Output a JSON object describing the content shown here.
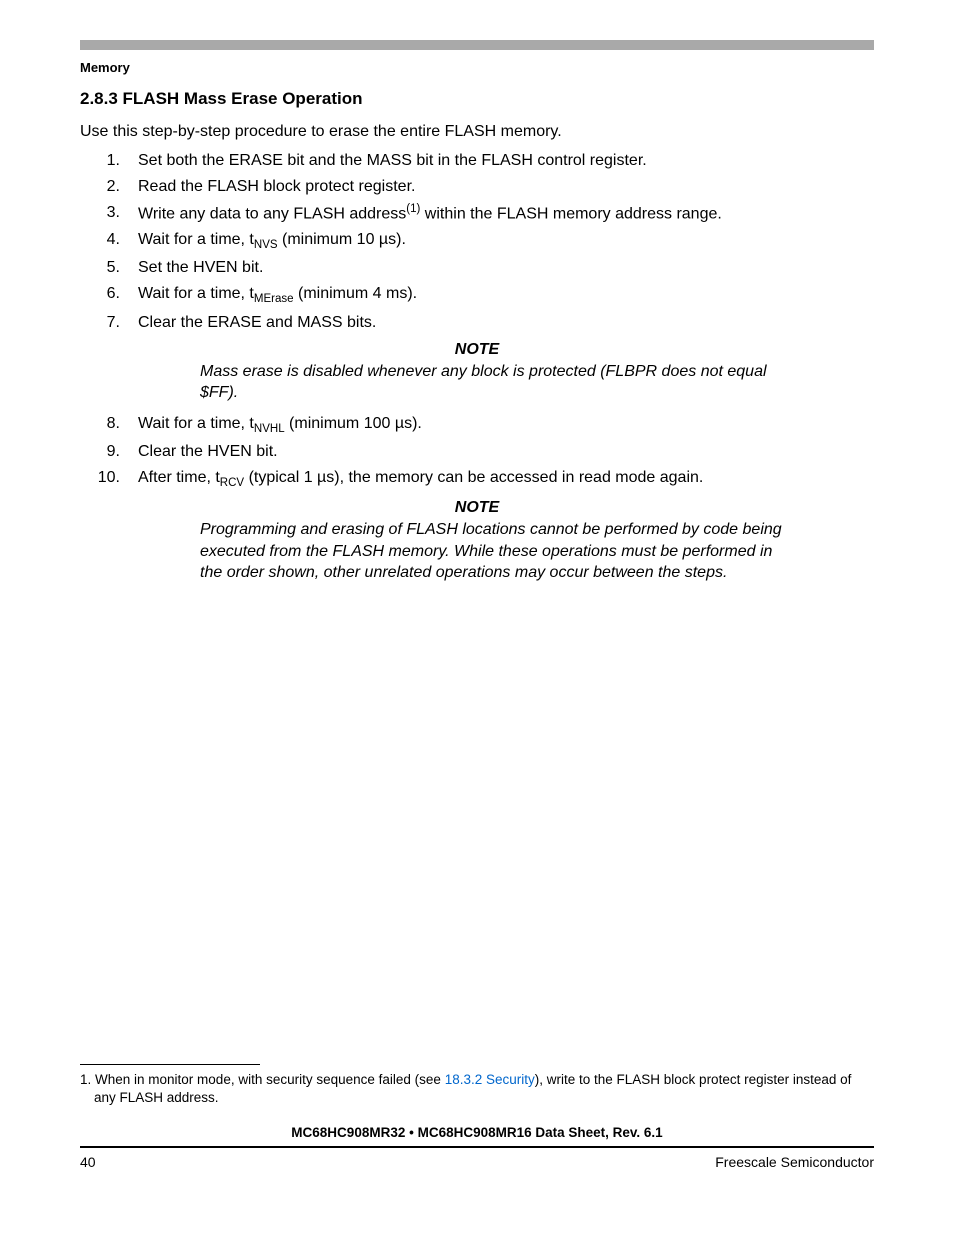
{
  "colors": {
    "top_bar": "#a9a9a9",
    "text": "#000000",
    "link": "#0066cc",
    "background": "#ffffff"
  },
  "typography": {
    "body_fontsize_pt": 12,
    "heading_fontsize_pt": 13,
    "footnote_fontsize_pt": 10,
    "font_family": "Arial/Helvetica"
  },
  "running_head": "Memory",
  "section": {
    "number": "2.8.3",
    "title": "FLASH Mass Erase Operation",
    "full": "2.8.3  FLASH Mass Erase Operation"
  },
  "intro": "Use this step-by-step procedure to erase the entire FLASH memory.",
  "steps_a": [
    {
      "n": "1.",
      "text": "Set both the ERASE bit and the MASS bit in the FLASH control register."
    },
    {
      "n": "2.",
      "text": "Read the FLASH block protect register."
    },
    {
      "n": "3.",
      "pre": "Write any data to any FLASH address",
      "sup": "(1)",
      "post": " within the FLASH memory address range."
    },
    {
      "n": "4.",
      "pre": "Wait for a time, t",
      "sub": "NVS",
      "post": " (minimum 10 µs)."
    },
    {
      "n": "5.",
      "text": "Set the HVEN bit."
    },
    {
      "n": "6.",
      "pre": "Wait for a time, t",
      "sub": "MErase",
      "post": " (minimum 4 ms)."
    },
    {
      "n": "7.",
      "text": "Clear the ERASE and MASS bits."
    }
  ],
  "note1": {
    "head": "NOTE",
    "body": "Mass erase is disabled whenever any block is protected (FLBPR does not equal $FF)."
  },
  "steps_b": [
    {
      "n": "8.",
      "pre": "Wait for a time, t",
      "sub": "NVHL",
      "post": " (minimum 100 µs)."
    },
    {
      "n": "9.",
      "text": "Clear the HVEN bit."
    },
    {
      "n": "10.",
      "pre": "After time, t",
      "sub": "RCV",
      "post": " (typical 1 µs), the memory can be accessed in read mode again."
    }
  ],
  "note2": {
    "head": "NOTE",
    "body": "Programming and erasing of FLASH locations cannot be performed by code being executed from the FLASH memory. While these operations must be performed in the order shown, other unrelated operations may occur between the steps."
  },
  "footnote": {
    "marker": "1.",
    "pre": " When in monitor mode, with security sequence failed (see ",
    "link": "18.3.2 Security",
    "post": "), write to the FLASH block protect register instead of any FLASH address."
  },
  "footer": {
    "doc_title": "MC68HC908MR32 • MC68HC908MR16 Data Sheet, Rev. 6.1",
    "page_number": "40",
    "company": "Freescale Semiconductor"
  }
}
